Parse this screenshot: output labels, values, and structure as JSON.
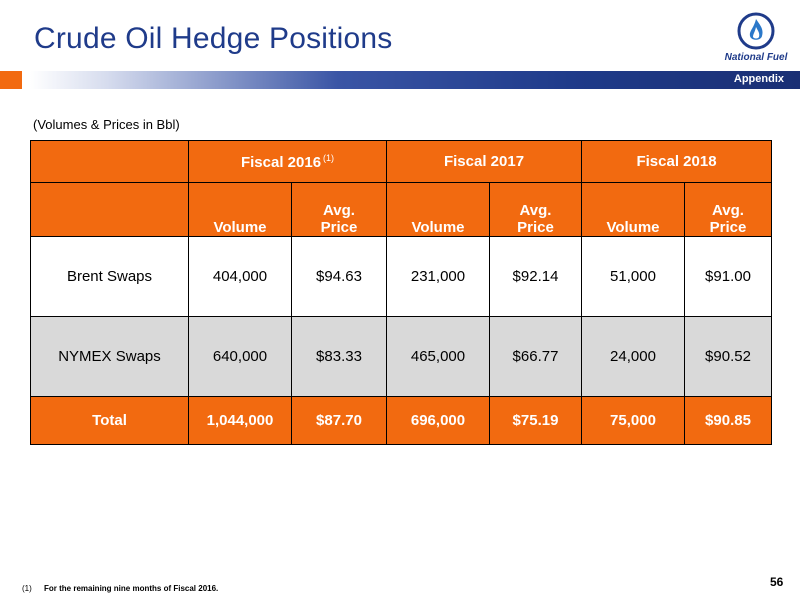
{
  "header": {
    "title": "Crude Oil Hedge Positions",
    "section_label": "Appendix",
    "logo_text": "National Fuel"
  },
  "subtitle": "(Volumes & Prices in Bbl)",
  "table": {
    "fiscal_years": [
      {
        "label": "Fiscal 2016",
        "footnote_ref": "(1)"
      },
      {
        "label": "Fiscal 2017",
        "footnote_ref": ""
      },
      {
        "label": "Fiscal 2018",
        "footnote_ref": ""
      }
    ],
    "columns": {
      "volume": "Volume",
      "price_line1": "Avg.",
      "price_line2": "Price"
    },
    "rows": [
      {
        "label": "Brent Swaps",
        "values": [
          "404,000",
          "$94.63",
          "231,000",
          "$92.14",
          "51,000",
          "$91.00"
        ]
      },
      {
        "label": "NYMEX Swaps",
        "values": [
          "640,000",
          "$83.33",
          "465,000",
          "$66.77",
          "24,000",
          "$90.52"
        ]
      }
    ],
    "total": {
      "label": "Total",
      "values": [
        "1,044,000",
        "$87.70",
        "696,000",
        "$75.19",
        "75,000",
        "$90.85"
      ]
    }
  },
  "footer": {
    "page_number": "56",
    "footnote_marker": "(1)",
    "footnote_text": "For the remaining nine months of Fiscal 2016."
  },
  "colors": {
    "title_blue": "#1f3b8a",
    "header_orange": "#f26a10",
    "row_gray": "#d9d9d9"
  }
}
